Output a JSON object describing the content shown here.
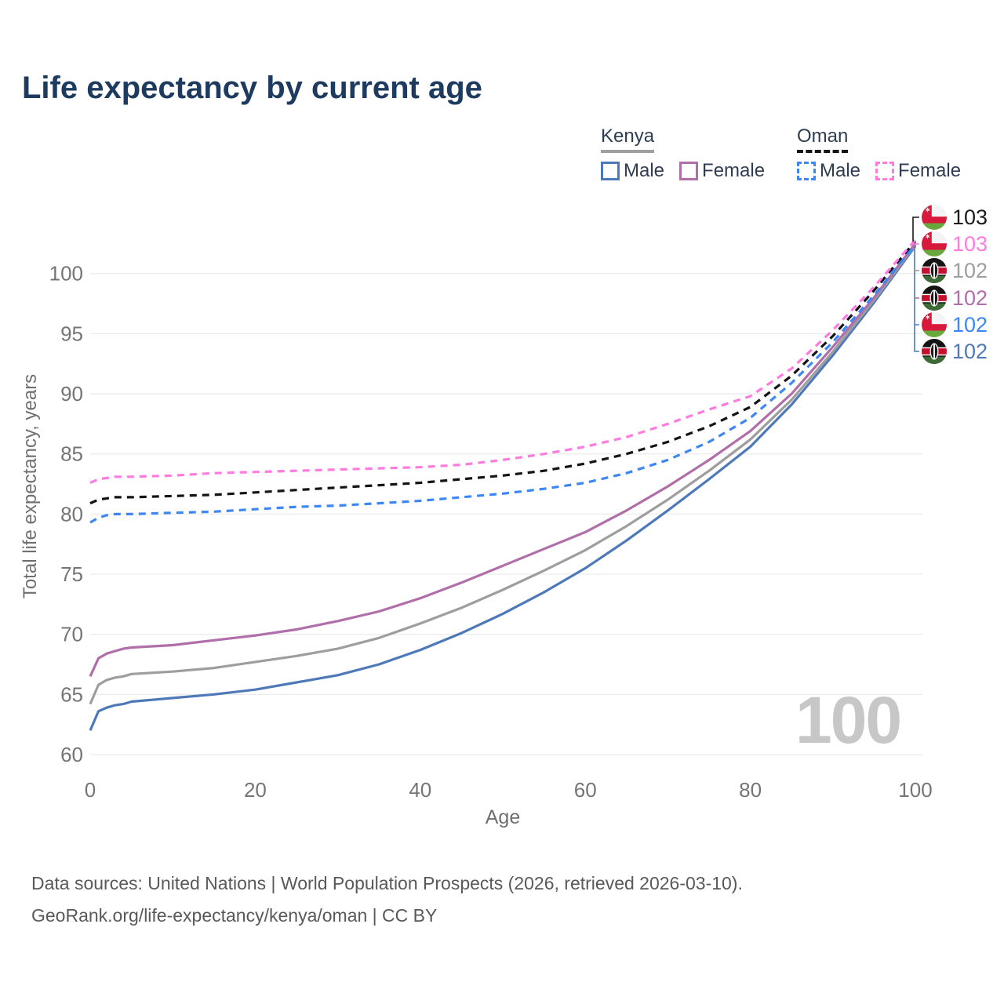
{
  "title": "Life expectancy by current age",
  "legend": {
    "groups": [
      {
        "name": "Kenya",
        "line_style": "solid",
        "underline_color": "#9e9e9e",
        "items": [
          {
            "label": "Male",
            "color": "#4e79b9",
            "dashed": false
          },
          {
            "label": "Female",
            "color": "#b06fa8",
            "dashed": false
          }
        ]
      },
      {
        "name": "Oman",
        "line_style": "dashed",
        "underline_color": "#141414",
        "items": [
          {
            "label": "Male",
            "color": "#3d87f5",
            "dashed": true
          },
          {
            "label": "Female",
            "color": "#ff7bdf",
            "dashed": true
          }
        ]
      }
    ]
  },
  "watermark_age": "100",
  "footer": {
    "line1": "Data sources: United Nations | World Population Prospects (2026, retrieved 2026-03-10).",
    "line2": "GeoRank.org/life-expectancy/kenya/oman | CC BY"
  },
  "chart_data": {
    "type": "line",
    "title": "Life expectancy by current age",
    "xlabel": "Age",
    "ylabel": "Total life expectancy, years",
    "xlim": [
      0,
      100
    ],
    "ylim": [
      60,
      103
    ],
    "x_ticks": [
      0,
      20,
      40,
      60,
      80,
      100
    ],
    "y_ticks": [
      60,
      65,
      70,
      75,
      80,
      85,
      90,
      95,
      100
    ],
    "grid": true,
    "legend_position": "top-right",
    "ages": [
      0,
      1,
      2,
      3,
      4,
      5,
      10,
      15,
      20,
      25,
      30,
      35,
      40,
      45,
      50,
      55,
      60,
      65,
      70,
      75,
      80,
      85,
      90,
      95,
      100
    ],
    "series": [
      {
        "id": "kenya-male",
        "name": "Kenya Male",
        "country": "kenya",
        "sex": "male",
        "color": "#4e79b9",
        "dashed": false,
        "values": [
          62.0,
          63.6,
          63.9,
          64.1,
          64.2,
          64.4,
          64.7,
          65.0,
          65.4,
          66.0,
          66.6,
          67.5,
          68.7,
          70.1,
          71.7,
          73.5,
          75.5,
          77.8,
          80.3,
          82.9,
          85.6,
          89.1,
          93.2,
          97.6,
          102.3
        ]
      },
      {
        "id": "kenya-total",
        "name": "Kenya Total",
        "country": "kenya",
        "sex": "both",
        "color": "#9e9e9e",
        "dashed": false,
        "values": [
          64.2,
          65.8,
          66.2,
          66.4,
          66.5,
          66.7,
          66.9,
          67.2,
          67.7,
          68.2,
          68.8,
          69.7,
          70.9,
          72.2,
          73.7,
          75.3,
          77.0,
          79.0,
          81.2,
          83.6,
          86.2,
          89.5,
          93.5,
          97.8,
          102.4
        ]
      },
      {
        "id": "kenya-female",
        "name": "Kenya Female",
        "country": "kenya",
        "sex": "female",
        "color": "#b06fa8",
        "dashed": false,
        "values": [
          66.5,
          68.0,
          68.4,
          68.6,
          68.8,
          68.9,
          69.1,
          69.5,
          69.9,
          70.4,
          71.1,
          71.9,
          73.0,
          74.3,
          75.7,
          77.1,
          78.5,
          80.3,
          82.3,
          84.5,
          86.9,
          90.0,
          93.9,
          98.0,
          102.5
        ]
      },
      {
        "id": "oman-male",
        "name": "Oman Male",
        "country": "oman",
        "sex": "male",
        "color": "#3d87f5",
        "dashed": true,
        "values": [
          79.3,
          79.7,
          79.9,
          80.0,
          80.0,
          80.0,
          80.1,
          80.2,
          80.4,
          80.6,
          80.7,
          80.9,
          81.1,
          81.4,
          81.7,
          82.1,
          82.6,
          83.4,
          84.5,
          86.0,
          88.0,
          90.9,
          94.3,
          98.2,
          102.4
        ]
      },
      {
        "id": "oman-total",
        "name": "Oman Total",
        "country": "oman",
        "sex": "both",
        "color": "#141414",
        "dashed": true,
        "values": [
          80.9,
          81.2,
          81.3,
          81.4,
          81.4,
          81.4,
          81.5,
          81.6,
          81.8,
          82.0,
          82.2,
          82.4,
          82.6,
          82.9,
          83.2,
          83.6,
          84.2,
          85.0,
          86.0,
          87.3,
          88.9,
          91.5,
          94.8,
          98.6,
          102.7
        ]
      },
      {
        "id": "oman-female",
        "name": "Oman Female",
        "country": "oman",
        "sex": "female",
        "color": "#ff7bdf",
        "dashed": true,
        "values": [
          82.6,
          82.9,
          83.0,
          83.1,
          83.1,
          83.1,
          83.2,
          83.4,
          83.5,
          83.6,
          83.7,
          83.8,
          83.9,
          84.1,
          84.5,
          85.0,
          85.6,
          86.4,
          87.5,
          88.7,
          89.8,
          92.1,
          95.3,
          98.9,
          102.8
        ]
      }
    ],
    "end_labels": [
      {
        "country": "oman",
        "value": "103",
        "color": "#1a1a1a"
      },
      {
        "country": "oman",
        "value": "103",
        "color": "#ff7bdf"
      },
      {
        "country": "kenya",
        "value": "102",
        "color": "#9e9e9e"
      },
      {
        "country": "kenya",
        "value": "102",
        "color": "#b06fa8"
      },
      {
        "country": "oman",
        "value": "102",
        "color": "#3d87f5"
      },
      {
        "country": "kenya",
        "value": "102",
        "color": "#4e79b9"
      }
    ]
  }
}
